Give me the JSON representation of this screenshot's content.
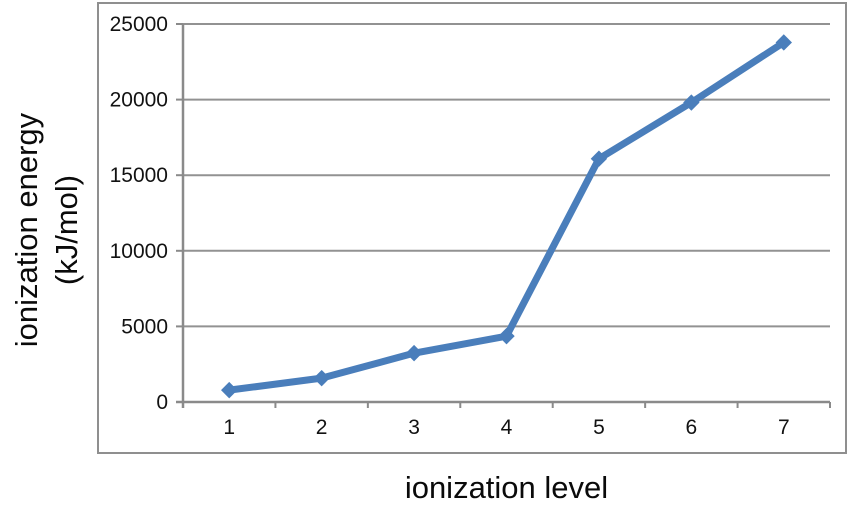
{
  "chart_data": {
    "type": "line",
    "title": "",
    "xlabel": "ionization level",
    "ylabel_lines": [
      "ionization energy",
      "(kJ/mol)"
    ],
    "x": [
      1,
      2,
      3,
      4,
      5,
      6,
      7
    ],
    "series": [
      {
        "name": "ionization energy (kJ/mol)",
        "values": [
          786,
          1577,
          3232,
          4356,
          16091,
          19805,
          23780
        ]
      }
    ],
    "ylim": [
      0,
      25000
    ],
    "yticks": [
      0,
      5000,
      10000,
      15000,
      20000,
      25000
    ],
    "grid": "horizontal",
    "legend_position": "none",
    "marker": "diamond",
    "colors": {
      "series_line": "#4a7ebb",
      "marker_fill": "#4a7ebb",
      "gridline": "#929292",
      "axis_line": "#8a8a8a",
      "frame_border": "#8f8f8f",
      "tick_text": "#121212",
      "title_text": "#0a0a0a",
      "background": "#ffffff"
    }
  }
}
